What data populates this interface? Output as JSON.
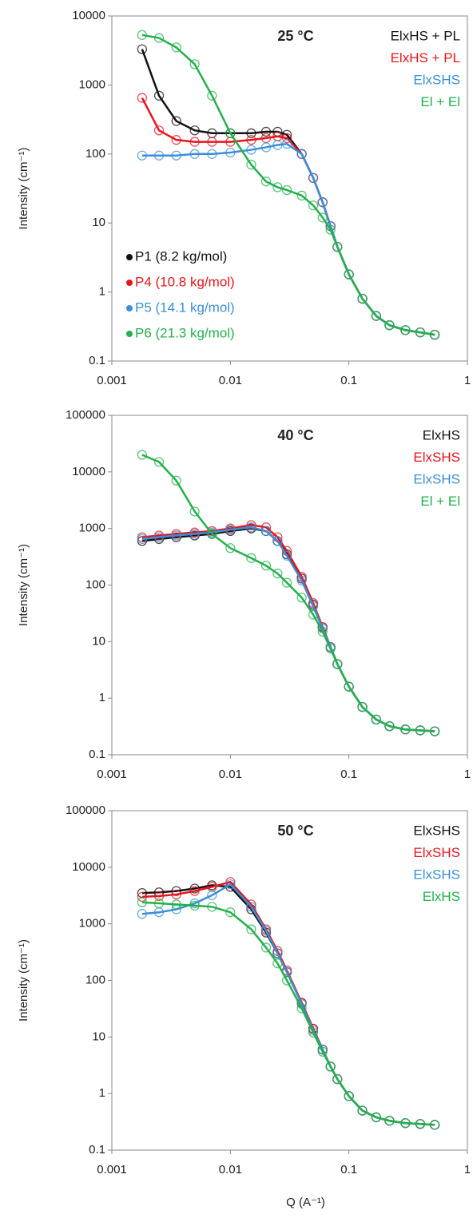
{
  "chart_data": [
    {
      "type": "scatter",
      "title": "25 °C",
      "y_label": "Intensity (cm⁻¹)",
      "xlog": true,
      "ylog": true,
      "xlim": [
        0.001,
        1
      ],
      "ylim": [
        0.1,
        10000
      ],
      "xticks": [
        0.001,
        0.01,
        0.1,
        1
      ],
      "yticks": [
        0.1,
        1,
        10,
        100,
        1000,
        10000
      ],
      "x": [
        0.0018,
        0.0025,
        0.0035,
        0.005,
        0.007,
        0.01,
        0.015,
        0.02,
        0.025,
        0.03,
        0.04,
        0.05,
        0.06,
        0.07,
        0.08,
        0.1,
        0.13,
        0.17,
        0.22,
        0.3,
        0.4,
        0.53
      ],
      "series": [
        {
          "name": "P1 (8.2 kg/mol)",
          "label": "ElxHS + PL",
          "color": "#111111",
          "values": [
            3300,
            700,
            300,
            220,
            200,
            200,
            200,
            210,
            210,
            190,
            100,
            45,
            20,
            9,
            4.5,
            1.8,
            0.8,
            0.45,
            0.33,
            0.28,
            0.26,
            0.24
          ]
        },
        {
          "name": "P4 (10.8 kg/mol)",
          "label": "ElxHS + PL",
          "color": "#e8141c",
          "values": [
            650,
            220,
            160,
            150,
            150,
            150,
            160,
            170,
            180,
            170,
            100,
            45,
            20,
            9,
            4.5,
            1.8,
            0.8,
            0.45,
            0.33,
            0.28,
            0.26,
            0.24
          ]
        },
        {
          "name": "P5 (14.1 kg/mol)",
          "label": "ElxSHS",
          "color": "#3a8fd8",
          "values": [
            95,
            95,
            95,
            100,
            100,
            105,
            115,
            125,
            135,
            140,
            100,
            45,
            20,
            9,
            4.5,
            1.8,
            0.8,
            0.45,
            0.33,
            0.28,
            0.26,
            0.24
          ]
        },
        {
          "name": "P6 (21.3 kg/mol)",
          "label": "El + El",
          "color": "#22b14c",
          "values": [
            5300,
            4800,
            3500,
            2000,
            700,
            200,
            70,
            40,
            33,
            30,
            25,
            18,
            12,
            8,
            4.5,
            1.8,
            0.8,
            0.45,
            0.33,
            0.28,
            0.26,
            0.24
          ]
        }
      ]
    },
    {
      "type": "scatter",
      "title": "40 °C",
      "y_label": "Intensity (cm⁻¹)",
      "xlog": true,
      "ylog": true,
      "xlim": [
        0.001,
        1
      ],
      "ylim": [
        0.1,
        100000
      ],
      "xticks": [
        0.001,
        0.01,
        0.1,
        1
      ],
      "yticks": [
        0.1,
        1,
        10,
        100,
        1000,
        10000,
        100000
      ],
      "x": [
        0.0018,
        0.0025,
        0.0035,
        0.005,
        0.007,
        0.01,
        0.015,
        0.02,
        0.025,
        0.03,
        0.04,
        0.05,
        0.06,
        0.07,
        0.08,
        0.1,
        0.13,
        0.17,
        0.22,
        0.3,
        0.4,
        0.53
      ],
      "series": [
        {
          "label": "ElxHS",
          "color": "#111111",
          "values": [
            600,
            650,
            700,
            750,
            800,
            900,
            1000,
            900,
            600,
            350,
            130,
            45,
            18,
            8,
            4,
            1.6,
            0.7,
            0.42,
            0.32,
            0.28,
            0.27,
            0.26
          ]
        },
        {
          "label": "ElxSHS",
          "color": "#e8141c",
          "values": [
            700,
            750,
            800,
            850,
            900,
            1000,
            1150,
            1050,
            700,
            400,
            140,
            48,
            18,
            8,
            4,
            1.6,
            0.7,
            0.42,
            0.32,
            0.28,
            0.27,
            0.26
          ]
        },
        {
          "label": "ElxSHS",
          "color": "#3a8fd8",
          "values": [
            650,
            700,
            750,
            800,
            850,
            950,
            1050,
            900,
            600,
            330,
            120,
            42,
            17,
            8,
            4,
            1.6,
            0.7,
            0.42,
            0.32,
            0.28,
            0.27,
            0.26
          ]
        },
        {
          "label": "El + El",
          "color": "#22b14c",
          "values": [
            20000,
            15000,
            7000,
            2000,
            800,
            450,
            300,
            220,
            160,
            110,
            60,
            30,
            15,
            7.5,
            4,
            1.6,
            0.7,
            0.42,
            0.32,
            0.28,
            0.27,
            0.26
          ]
        }
      ]
    },
    {
      "type": "scatter",
      "title": "50 °C",
      "y_label": "Intensity (cm⁻¹)",
      "x_label": "Q (A⁻¹)",
      "xlog": true,
      "ylog": true,
      "xlim": [
        0.001,
        1
      ],
      "ylim": [
        0.1,
        100000
      ],
      "xticks": [
        0.001,
        0.01,
        0.1,
        1
      ],
      "yticks": [
        0.1,
        1,
        10,
        100,
        1000,
        10000,
        100000
      ],
      "x": [
        0.0018,
        0.0025,
        0.0035,
        0.005,
        0.007,
        0.01,
        0.015,
        0.02,
        0.025,
        0.03,
        0.04,
        0.05,
        0.06,
        0.07,
        0.08,
        0.1,
        0.13,
        0.17,
        0.22,
        0.3,
        0.4,
        0.53
      ],
      "series": [
        {
          "label": "ElxSHS",
          "color": "#111111",
          "values": [
            3500,
            3600,
            3800,
            4200,
            4800,
            4500,
            1800,
            700,
            300,
            140,
            40,
            14,
            6,
            3,
            1.8,
            0.9,
            0.5,
            0.38,
            0.33,
            0.3,
            0.29,
            0.28
          ]
        },
        {
          "label": "ElxSHS",
          "color": "#e8141c",
          "values": [
            3000,
            3100,
            3300,
            3800,
            4500,
            5500,
            2200,
            800,
            330,
            150,
            40,
            14,
            6,
            3,
            1.8,
            0.9,
            0.5,
            0.38,
            0.33,
            0.3,
            0.29,
            0.28
          ]
        },
        {
          "label": "ElxSHS",
          "color": "#3a8fd8",
          "values": [
            1500,
            1600,
            1800,
            2300,
            3200,
            5000,
            2000,
            750,
            300,
            140,
            38,
            13,
            6,
            3,
            1.8,
            0.9,
            0.5,
            0.38,
            0.33,
            0.3,
            0.29,
            0.28
          ]
        },
        {
          "label": "ElxHS",
          "color": "#22b14c",
          "values": [
            2400,
            2300,
            2200,
            2100,
            2000,
            1600,
            800,
            380,
            200,
            100,
            32,
            12,
            5.5,
            3,
            1.8,
            0.9,
            0.5,
            0.38,
            0.33,
            0.3,
            0.29,
            0.28
          ]
        }
      ]
    }
  ]
}
